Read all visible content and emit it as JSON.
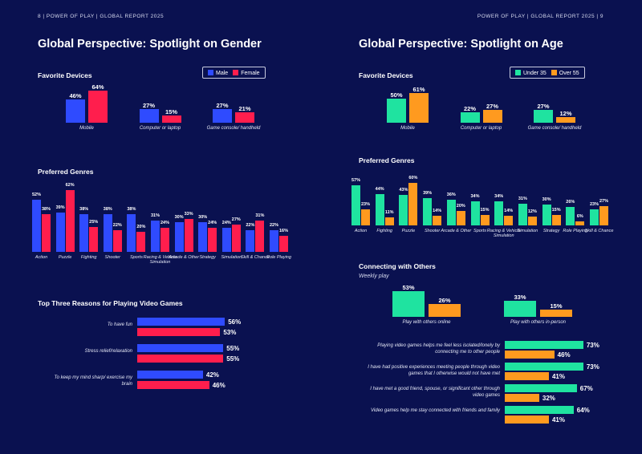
{
  "left": {
    "header": "8   |   POWER OF PLAY   |   GLOBAL REPORT 2025",
    "title": "Global Perspective: Spotlight on Gender",
    "legend": [
      {
        "label": "Male",
        "color": "#2f4bff"
      },
      {
        "label": "Female",
        "color": "#ff1e4d"
      }
    ]
  },
  "right": {
    "header": "POWER OF PLAY   |   GLOBAL REPORT 2025   |   9",
    "title": "Global Perspective: Spotlight on Age",
    "legend": [
      {
        "label": "Under 35",
        "color": "#1fe3a0"
      },
      {
        "label": "Over 55",
        "color": "#ff9a1f"
      }
    ]
  },
  "chart_data": [
    {
      "id": "gender-devices",
      "type": "bar",
      "title": "Favorite Devices",
      "categories": [
        "Mobile",
        "Computer or laptop",
        "Game console/ handheld"
      ],
      "series": [
        {
          "name": "Male",
          "values": [
            46,
            27,
            27
          ]
        },
        {
          "name": "Female",
          "values": [
            64,
            15,
            21
          ]
        }
      ],
      "unit": "%"
    },
    {
      "id": "gender-genres",
      "type": "bar",
      "title": "Preferred Genres",
      "categories": [
        "Action",
        "Puzzle",
        "Fighting",
        "Shooter",
        "Sports",
        "Racing & Vehicle Simulation",
        "Arcade & Other",
        "Strategy",
        "Simulation",
        "Skill & Chance",
        "Role Playing"
      ],
      "series": [
        {
          "name": "Male",
          "values": [
            52,
            39,
            38,
            38,
            38,
            31,
            30,
            30,
            24,
            22,
            22
          ]
        },
        {
          "name": "Female",
          "values": [
            38,
            62,
            25,
            22,
            20,
            24,
            33,
            24,
            27,
            31,
            16
          ]
        }
      ],
      "unit": "%"
    },
    {
      "id": "gender-reasons",
      "type": "bar",
      "orientation": "horizontal",
      "title": "Top Three Reasons for Playing Video Games",
      "categories": [
        "To have fun",
        "Stress relief/relaxation",
        "To keep my mind sharp/ exercise my brain"
      ],
      "series": [
        {
          "name": "Male",
          "values": [
            56,
            55,
            42
          ]
        },
        {
          "name": "Female",
          "values": [
            53,
            55,
            46
          ]
        }
      ],
      "unit": "%"
    },
    {
      "id": "age-devices",
      "type": "bar",
      "title": "Favorite Devices",
      "categories": [
        "Mobile",
        "Computer or laptop",
        "Game console/ handheld"
      ],
      "series": [
        {
          "name": "Under 35",
          "values": [
            50,
            22,
            27
          ]
        },
        {
          "name": "Over 55",
          "values": [
            61,
            27,
            12
          ]
        }
      ],
      "unit": "%"
    },
    {
      "id": "age-genres",
      "type": "bar",
      "title": "Preferred Genres",
      "categories": [
        "Action",
        "Fighting",
        "Puzzle",
        "Shooter",
        "Arcade & Other",
        "Sports",
        "Racing & Vehicle Simulation",
        "Simulation",
        "Strategy",
        "Role Playing",
        "Skill & Chance"
      ],
      "series": [
        {
          "name": "Under 35",
          "values": [
            57,
            44,
            43,
            39,
            36,
            34,
            34,
            31,
            30,
            26,
            23
          ]
        },
        {
          "name": "Over 55",
          "values": [
            23,
            11,
            60,
            14,
            20,
            15,
            14,
            12,
            15,
            6,
            27
          ]
        }
      ],
      "unit": "%"
    },
    {
      "id": "age-weekly",
      "type": "bar",
      "title": "Connecting with Others",
      "subtitle": "Weekly play",
      "categories": [
        "Play with others online",
        "Play with others in-person"
      ],
      "series": [
        {
          "name": "Under 35",
          "values": [
            53,
            33
          ]
        },
        {
          "name": "Over 55",
          "values": [
            26,
            15
          ]
        }
      ],
      "unit": "%"
    },
    {
      "id": "age-statements",
      "type": "bar",
      "orientation": "horizontal",
      "categories": [
        "Playing video games helps me feel less isolated/lonely by connecting me to other people",
        "I have had positive experiences meeting people through video games that I otherwise would not have met",
        "I have met a good friend, spouse, or significant other through video games",
        "Video games help me stay connected with friends and family"
      ],
      "series": [
        {
          "name": "Under 35",
          "values": [
            73,
            73,
            67,
            64
          ]
        },
        {
          "name": "Over 55",
          "values": [
            46,
            41,
            32,
            41
          ]
        }
      ],
      "unit": "%"
    }
  ]
}
